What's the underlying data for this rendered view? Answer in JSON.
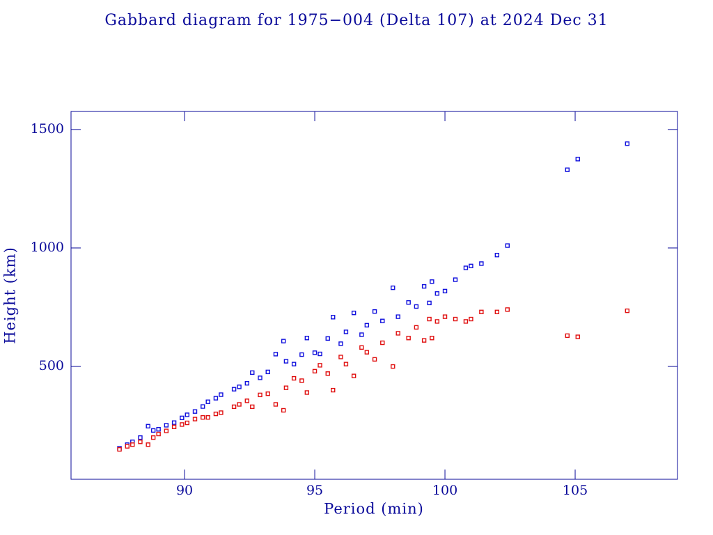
{
  "chart_data": {
    "type": "scatter",
    "title": "Gabbard diagram for 1975−004 (Delta 107) at 2024 Dec 31",
    "x_label": "Period (min)",
    "y_label": "Height (km)",
    "xlim": [
      85.64,
      108.93
    ],
    "ylim": [
      24,
      1576
    ],
    "xticks": [
      90,
      95,
      100,
      105
    ],
    "yticks": [
      500,
      1000,
      1500
    ],
    "grid": false,
    "x": [
      87.5,
      87.8,
      88.0,
      88.3,
      88.6,
      88.8,
      89.0,
      89.3,
      89.6,
      89.9,
      90.1,
      90.4,
      90.7,
      90.9,
      91.2,
      91.4,
      91.9,
      92.1,
      92.4,
      92.6,
      92.9,
      93.2,
      93.5,
      93.8,
      93.9,
      94.2,
      94.5,
      94.7,
      95.0,
      95.2,
      95.5,
      95.7,
      96.0,
      96.2,
      96.5,
      96.8,
      97.0,
      97.3,
      97.6,
      98.0,
      98.2,
      98.6,
      98.9,
      99.2,
      99.4,
      99.5,
      99.7,
      100.0,
      100.4,
      100.8,
      101.0,
      101.4,
      102.0,
      102.4,
      104.7,
      105.1,
      107.0
    ],
    "series": [
      {
        "color": "#1010dd",
        "values": [
          155,
          170,
          182,
          200,
          248,
          230,
          235,
          252,
          263,
          283,
          296,
          310,
          331,
          351,
          366,
          381,
          404,
          414,
          429,
          474,
          452,
          477,
          552,
          607,
          522,
          510,
          550,
          620,
          558,
          553,
          618,
          708,
          596,
          646,
          726,
          634,
          674,
          732,
          692,
          832,
          710,
          770,
          753,
          838,
          768,
          858,
          808,
          818,
          866,
          916,
          924,
          934,
          970,
          1010,
          1330,
          1375,
          1440
        ]
      },
      {
        "color": "#e01010",
        "values": [
          150,
          163,
          170,
          182,
          170,
          200,
          215,
          228,
          245,
          255,
          262,
          278,
          285,
          285,
          300,
          305,
          330,
          340,
          355,
          330,
          380,
          385,
          340,
          315,
          410,
          450,
          440,
          390,
          480,
          505,
          470,
          400,
          540,
          510,
          460,
          580,
          560,
          530,
          600,
          500,
          640,
          620,
          665,
          610,
          700,
          620,
          690,
          710,
          700,
          690,
          700,
          730,
          730,
          740,
          630,
          625,
          735
        ]
      }
    ]
  }
}
